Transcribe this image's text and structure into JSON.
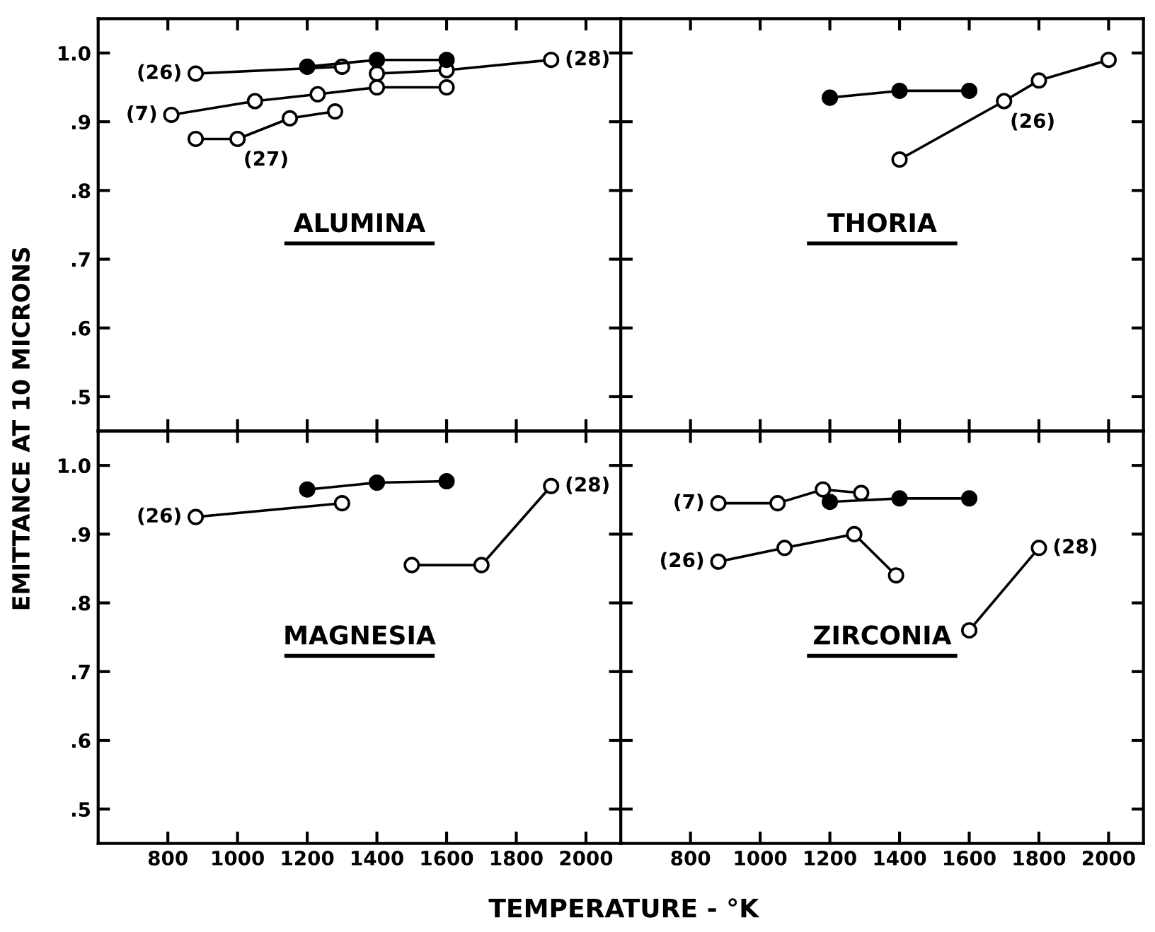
{
  "chart_data": [
    {
      "type": "line",
      "marker": "circle",
      "grid": false,
      "tick_labels": "y",
      "xlim": [
        600,
        2100
      ],
      "ylim": [
        0.45,
        1.05
      ],
      "xticks": [
        800,
        1000,
        1200,
        1400,
        1600,
        1800,
        2000
      ],
      "yticks": [
        {
          "value": 0.5,
          "label": ".5"
        },
        {
          "value": 0.6,
          "label": ".6"
        },
        {
          "value": 0.7,
          "label": ".7"
        },
        {
          "value": 0.8,
          "label": ".8"
        },
        {
          "value": 0.9,
          "label": ".9"
        },
        {
          "value": 1.0,
          "label": "1.0"
        }
      ],
      "ylabel": "EMITTANCE AT 10 MICRONS",
      "series": [
        {
          "color": "#000000",
          "x": [
            1200,
            1400,
            1600
          ],
          "values": [
            0.98,
            0.99,
            0.99
          ]
        },
        {
          "color": "#ffffff",
          "x": [
            880,
            1300
          ],
          "values": [
            0.97,
            0.98
          ]
        },
        {
          "color": "#ffffff",
          "x": [
            1400,
            1600,
            1900
          ],
          "values": [
            0.97,
            0.975,
            0.99
          ]
        },
        {
          "color": "#ffffff",
          "x": [
            810,
            1050,
            1230,
            1400,
            1600
          ],
          "values": [
            0.91,
            0.93,
            0.94,
            0.95,
            0.95
          ]
        },
        {
          "color": "#ffffff",
          "x": [
            880,
            1000,
            1150,
            1280
          ],
          "values": [
            0.875,
            0.875,
            0.905,
            0.915
          ]
        }
      ],
      "annotations": [
        "ALUMINA",
        {
          "text": "(26)",
          "x": 880,
          "y": 0.97
        },
        {
          "text": "(28)",
          "x": 1900,
          "y": 0.99
        },
        {
          "text": "(7)",
          "x": 810,
          "y": 0.91
        },
        {
          "text": "(27)",
          "x": 1000,
          "y": 0.875
        }
      ]
    },
    {
      "type": "line",
      "marker": "circle",
      "grid": false,
      "tick_labels": false,
      "xlim": [
        600,
        2100
      ],
      "ylim": [
        0.45,
        1.05
      ],
      "xticks": [
        800,
        1000,
        1200,
        1400,
        1600,
        1800,
        2000
      ],
      "yticks": [
        0.5,
        0.6,
        0.7,
        0.8,
        0.9,
        1.0
      ],
      "series": [
        {
          "color": "#000000",
          "x": [
            1200,
            1400,
            1600
          ],
          "values": [
            0.935,
            0.945,
            0.945
          ]
        },
        {
          "color": "#ffffff",
          "x": [
            1400,
            1700,
            1800,
            2000
          ],
          "values": [
            0.845,
            0.93,
            0.96,
            0.99
          ]
        }
      ],
      "annotations": [
        "THORIA",
        {
          "text": "(26)",
          "x": 1700,
          "y": 0.93
        }
      ]
    },
    {
      "type": "line",
      "marker": "circle",
      "grid": false,
      "xlim": [
        600,
        2100
      ],
      "ylim": [
        0.45,
        1.05
      ],
      "xticks": [
        800,
        1000,
        1200,
        1400,
        1600,
        1800,
        2000
      ],
      "yticks": [
        {
          "value": 0.5,
          "label": ".5"
        },
        {
          "value": 0.6,
          "label": ".6"
        },
        {
          "value": 0.7,
          "label": ".7"
        },
        {
          "value": 0.8,
          "label": ".8"
        },
        {
          "value": 0.9,
          "label": ".9"
        },
        {
          "value": 1.0,
          "label": "1.0"
        }
      ],
      "xlabel": "TEMPERATURE - °K",
      "series": [
        {
          "color": "#000000",
          "x": [
            1200,
            1400,
            1600
          ],
          "values": [
            0.965,
            0.975,
            0.977
          ]
        },
        {
          "color": "#ffffff",
          "x": [
            880,
            1300
          ],
          "values": [
            0.925,
            0.945
          ]
        },
        {
          "color": "#ffffff",
          "x": [
            1500,
            1700,
            1900
          ],
          "values": [
            0.855,
            0.855,
            0.97
          ]
        }
      ],
      "annotations": [
        "MAGNESIA",
        {
          "text": "(26)",
          "x": 880,
          "y": 0.925
        },
        {
          "text": "(28)",
          "x": 1900,
          "y": 0.97
        }
      ]
    },
    {
      "type": "line",
      "marker": "circle",
      "grid": false,
      "tick_labels": "x",
      "xlim": [
        600,
        2100
      ],
      "ylim": [
        0.45,
        1.05
      ],
      "xticks": [
        800,
        1000,
        1200,
        1400,
        1600,
        1800,
        2000
      ],
      "yticks": [
        0.5,
        0.6,
        0.7,
        0.8,
        0.9,
        1.0
      ],
      "series": [
        {
          "color": "#ffffff",
          "x": [
            880,
            1050,
            1180,
            1290
          ],
          "values": [
            0.945,
            0.945,
            0.965,
            0.96
          ]
        },
        {
          "color": "#000000",
          "x": [
            1200,
            1400,
            1600
          ],
          "values": [
            0.947,
            0.952,
            0.952
          ]
        },
        {
          "color": "#ffffff",
          "x": [
            880,
            1070,
            1270,
            1390
          ],
          "values": [
            0.86,
            0.88,
            0.9,
            0.84
          ]
        },
        {
          "color": "#ffffff",
          "x": [
            1600,
            1800
          ],
          "values": [
            0.76,
            0.88
          ]
        }
      ],
      "annotations": [
        "ZIRCONIA",
        {
          "text": "(7)",
          "x": 880,
          "y": 0.945
        },
        {
          "text": "(26)",
          "x": 880,
          "y": 0.86
        },
        {
          "text": "(28)",
          "x": 1800,
          "y": 0.88
        }
      ]
    }
  ]
}
